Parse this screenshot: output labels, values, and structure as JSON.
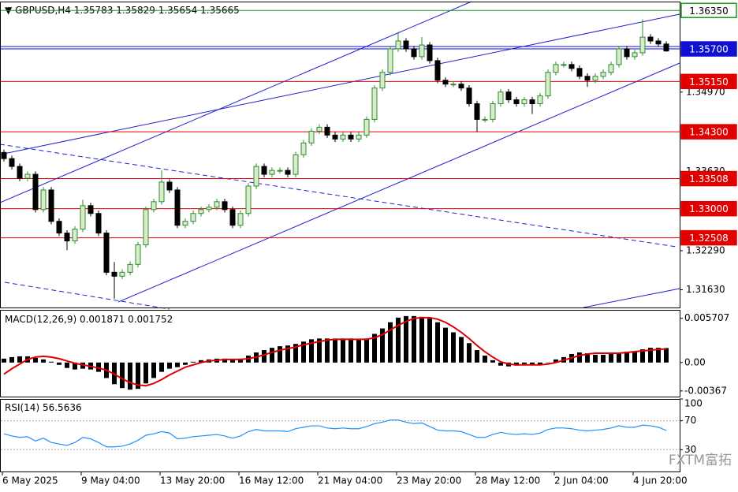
{
  "chart_data": {
    "type": "candlestick",
    "symbol": "GBPUSD,H4",
    "categories": [
      "6 May 2025",
      null,
      null,
      null,
      null,
      null,
      null,
      null,
      null,
      null,
      "9 May 04:00",
      null,
      null,
      null,
      null,
      null,
      null,
      null,
      null,
      null,
      "13 May 20:00",
      null,
      null,
      null,
      null,
      null,
      null,
      null,
      null,
      null,
      "16 May 12:00",
      null,
      null,
      null,
      null,
      null,
      null,
      null,
      null,
      null,
      "21 May 04:00",
      null,
      null,
      null,
      null,
      null,
      null,
      null,
      null,
      null,
      "23 May 20:00",
      null,
      null,
      null,
      null,
      null,
      null,
      null,
      null,
      null,
      "28 May 12:00",
      null,
      null,
      null,
      null,
      null,
      null,
      null,
      null,
      null,
      "2 Jun 04:00",
      null,
      null,
      null,
      null,
      null,
      null,
      null,
      null,
      null,
      "4 Jun 20:00",
      null,
      null,
      null,
      null
    ],
    "open": [
      1.3395,
      1.33846,
      1.33714,
      1.33515,
      1.33581,
      1.32985,
      1.33316,
      1.32786,
      1.32588,
      1.32455,
      1.32654,
      1.33051,
      1.32919,
      1.32588,
      1.31925,
      1.31859,
      1.31925,
      1.32058,
      1.32389,
      1.32985,
      1.33118,
      1.33449,
      1.33316,
      1.3272,
      1.32786,
      1.32919,
      1.32985,
      1.33025,
      1.33118,
      1.32985,
      1.3272,
      1.32919,
      1.33382,
      1.33714,
      1.33581,
      1.33647,
      1.33647,
      1.33581,
      1.33912,
      1.34111,
      1.3431,
      1.34376,
      1.34244,
      1.34177,
      1.34244,
      1.34177,
      1.34244,
      1.34509,
      1.35039,
      1.35304,
      1.35701,
      1.35834,
      1.35701,
      1.35569,
      1.35767,
      1.35502,
      1.35171,
      1.35105,
      1.35105,
      1.35039,
      1.34774,
      1.34509,
      1.34509,
      1.34774,
      1.34972,
      1.3484,
      1.34774,
      1.3484,
      1.34774,
      1.34906,
      1.35304,
      1.35436,
      1.35436,
      1.3537,
      1.35237,
      1.35171,
      1.35237,
      1.35304,
      1.35436,
      1.35701,
      1.35569,
      1.35635,
      1.359,
      1.35834,
      1.35783
    ],
    "high": [
      1.34,
      1.33896,
      1.33764,
      1.33631,
      1.33631,
      1.33366,
      1.33366,
      1.32836,
      1.32638,
      1.32704,
      1.3315,
      1.33101,
      1.32969,
      1.32638,
      1.321,
      1.31975,
      1.32108,
      1.32439,
      1.33035,
      1.33168,
      1.3365,
      1.33499,
      1.33366,
      1.32836,
      1.32969,
      1.33035,
      1.33075,
      1.33168,
      1.33168,
      1.33035,
      1.32969,
      1.33432,
      1.33764,
      1.33764,
      1.33697,
      1.33697,
      1.33697,
      1.33962,
      1.34161,
      1.3436,
      1.34426,
      1.34426,
      1.34294,
      1.34294,
      1.34294,
      1.34294,
      1.34559,
      1.35089,
      1.35354,
      1.35751,
      1.3597,
      1.35884,
      1.35751,
      1.359,
      1.35817,
      1.35552,
      1.35221,
      1.35155,
      1.35155,
      1.35089,
      1.34824,
      1.34559,
      1.34824,
      1.35022,
      1.35022,
      1.3489,
      1.3489,
      1.3489,
      1.34956,
      1.35354,
      1.35486,
      1.35486,
      1.35486,
      1.3542,
      1.35287,
      1.35287,
      1.35354,
      1.35486,
      1.35751,
      1.35751,
      1.35685,
      1.362,
      1.3595,
      1.35884,
      1.35829
    ],
    "low": [
      1.33796,
      1.33664,
      1.33465,
      1.33465,
      1.32935,
      1.32935,
      1.32736,
      1.32538,
      1.323,
      1.32405,
      1.32604,
      1.32869,
      1.32538,
      1.31875,
      1.3148,
      1.31809,
      1.31875,
      1.32008,
      1.32339,
      1.32935,
      1.33068,
      1.33266,
      1.3267,
      1.3267,
      1.32736,
      1.32869,
      1.32935,
      1.32975,
      1.32935,
      1.3267,
      1.3267,
      1.32869,
      1.33332,
      1.33531,
      1.33531,
      1.33597,
      1.33531,
      1.33531,
      1.33862,
      1.34061,
      1.3426,
      1.34194,
      1.34127,
      1.34127,
      1.34127,
      1.34127,
      1.34194,
      1.34459,
      1.34989,
      1.35254,
      1.35651,
      1.35651,
      1.35519,
      1.35519,
      1.35452,
      1.35121,
      1.35055,
      1.35055,
      1.34989,
      1.34724,
      1.343,
      1.34459,
      1.34459,
      1.34724,
      1.3479,
      1.34724,
      1.34724,
      1.346,
      1.34724,
      1.34856,
      1.35254,
      1.35386,
      1.3532,
      1.35187,
      1.3506,
      1.35121,
      1.35187,
      1.35254,
      1.35386,
      1.35519,
      1.35519,
      1.35585,
      1.35784,
      1.35733,
      1.35654
    ],
    "close": [
      1.33846,
      1.33714,
      1.33515,
      1.33581,
      1.32985,
      1.33316,
      1.32786,
      1.32588,
      1.32455,
      1.32654,
      1.33051,
      1.32919,
      1.32588,
      1.31925,
      1.31859,
      1.31925,
      1.32058,
      1.32389,
      1.32985,
      1.33118,
      1.33449,
      1.33316,
      1.3272,
      1.32786,
      1.32919,
      1.32985,
      1.33025,
      1.33118,
      1.32985,
      1.3272,
      1.32919,
      1.33382,
      1.33714,
      1.33581,
      1.33647,
      1.33647,
      1.33581,
      1.33912,
      1.34111,
      1.3431,
      1.34376,
      1.34244,
      1.34177,
      1.34244,
      1.34177,
      1.34244,
      1.34509,
      1.35039,
      1.35304,
      1.35701,
      1.35834,
      1.35701,
      1.35569,
      1.35767,
      1.35502,
      1.35171,
      1.35105,
      1.35105,
      1.35039,
      1.34774,
      1.34509,
      1.34509,
      1.34774,
      1.34972,
      1.3484,
      1.34774,
      1.3484,
      1.34774,
      1.34906,
      1.35304,
      1.35436,
      1.35436,
      1.3537,
      1.35237,
      1.35171,
      1.35237,
      1.35304,
      1.35436,
      1.35701,
      1.35569,
      1.35635,
      1.359,
      1.35834,
      1.35783,
      1.35665
    ],
    "up_color": "#d8eccb",
    "up_edge": "#2e8b2e",
    "down_color": "#000000",
    "ylim": [
      1.3133,
      1.365
    ],
    "yticks": [
      {
        "value": 1.3497,
        "label": "1.34970"
      },
      {
        "value": 1.3363,
        "label": "1.33630"
      },
      {
        "value": 1.3229,
        "label": "1.32290"
      },
      {
        "value": 1.3163,
        "label": "1.31630"
      }
    ],
    "levels": [
      {
        "value": 1.3635,
        "label": "1.36350",
        "color": "#1a9a1a"
      },
      {
        "value": 1.357,
        "label": "1.35700",
        "color": "#1010d0"
      },
      {
        "value": 1.3515,
        "label": "1.35150",
        "color": "#e00000"
      },
      {
        "value": 1.343,
        "label": "1.34300",
        "color": "#e00000"
      },
      {
        "value": 1.33508,
        "label": "1.33508",
        "color": "#e00000"
      },
      {
        "value": 1.33,
        "label": "1.33000",
        "color": "#e00000"
      },
      {
        "value": 1.32508,
        "label": "1.32508",
        "color": "#e00000"
      }
    ],
    "macd": {
      "name": "MACD(12,26,9)",
      "histogram": [
        0.0005,
        0.0007,
        0.0008,
        0.0008,
        0.0006,
        0.0004,
        0.0001,
        -0.0003,
        -0.0007,
        -0.0009,
        -0.0008,
        -0.0009,
        -0.0012,
        -0.002,
        -0.0028,
        -0.0033,
        -0.0035,
        -0.0034,
        -0.0027,
        -0.002,
        -0.0012,
        -0.0008,
        -0.0006,
        -0.0003,
        0.0001,
        0.0003,
        0.0004,
        0.0005,
        0.0005,
        0.0004,
        0.0005,
        0.0009,
        0.0013,
        0.0016,
        0.0019,
        0.0021,
        0.0022,
        0.0024,
        0.0027,
        0.003,
        0.0031,
        0.0031,
        0.0031,
        0.0031,
        0.0031,
        0.003,
        0.0031,
        0.0037,
        0.0044,
        0.0052,
        0.0058,
        0.006,
        0.006,
        0.0059,
        0.0057,
        0.0052,
        0.0045,
        0.0039,
        0.0033,
        0.0025,
        0.0016,
        0.0009,
        0.0003,
        -0.0004,
        -0.0005,
        -0.0004,
        -0.0002,
        -0.0003,
        -0.0003,
        0,
        0.0004,
        0.0007,
        0.0011,
        0.0013,
        0.0012,
        0.001,
        0.001,
        0.0011,
        0.0013,
        0.0014,
        0.0014,
        0.0017,
        0.0019,
        0.0019,
        0.001871
      ],
      "signal": [
        -0.0015,
        -0.0008,
        -0.0002,
        0.0004,
        0.0007,
        0.0008,
        0.0007,
        0.0005,
        0.0002,
        -0.0001,
        -0.0003,
        -0.0005,
        -0.0007,
        -0.001,
        -0.0015,
        -0.0021,
        -0.0026,
        -0.0029,
        -0.003,
        -0.0027,
        -0.0022,
        -0.0016,
        -0.0011,
        -0.0006,
        -0.0003,
        0,
        0.0002,
        0.0003,
        0.0004,
        0.0004,
        0.0004,
        0.0005,
        0.0007,
        0.001,
        0.0013,
        0.0016,
        0.0018,
        0.002,
        0.0023,
        0.0025,
        0.0027,
        0.0029,
        0.003,
        0.003,
        0.003,
        0.003,
        0.003,
        0.0032,
        0.0036,
        0.0042,
        0.0048,
        0.0053,
        0.0057,
        0.0058,
        0.0058,
        0.0056,
        0.0052,
        0.0046,
        0.0039,
        0.0031,
        0.0022,
        0.0014,
        0.0007,
        0.0001,
        -0.0002,
        -0.0003,
        -0.0003,
        -0.0003,
        -0.0003,
        -0.0002,
        0,
        0.0003,
        0.0006,
        0.0009,
        0.0011,
        0.0012,
        0.0012,
        0.0012,
        0.0012,
        0.0013,
        0.0014,
        0.0015,
        0.0016,
        0.0017,
        0.001752
      ],
      "hist_color": "#000000",
      "signal_color": "#e00000",
      "ylim": [
        -0.0044,
        0.0068
      ],
      "yticks": [
        0.005707,
        {
          "value": 0,
          "label": "0.00"
        },
        -0.00367
      ]
    },
    "rsi": {
      "name": "RSI(14)",
      "values": [
        52,
        49,
        47,
        48,
        42,
        46,
        40,
        38,
        36,
        40,
        47,
        45,
        40,
        34,
        34,
        35,
        38,
        43,
        50,
        52,
        55,
        53,
        45,
        46,
        48,
        49,
        50,
        51,
        49,
        46,
        49,
        55,
        58,
        56,
        56,
        56,
        55,
        59,
        61,
        63,
        63,
        60,
        59,
        60,
        59,
        59,
        62,
        66,
        68,
        71,
        71,
        68,
        66,
        67,
        62,
        57,
        56,
        56,
        55,
        51,
        47,
        47,
        51,
        54,
        52,
        51,
        52,
        51,
        53,
        58,
        60,
        60,
        59,
        57,
        56,
        57,
        58,
        60,
        63,
        61,
        61,
        64,
        63,
        61,
        56.5636
      ],
      "color": "#1e90ff",
      "ylim": [
        0,
        100
      ],
      "yticks": [
        100,
        70,
        30
      ],
      "levels": [
        70,
        30
      ]
    },
    "watermark": "FXTM富拓"
  }
}
